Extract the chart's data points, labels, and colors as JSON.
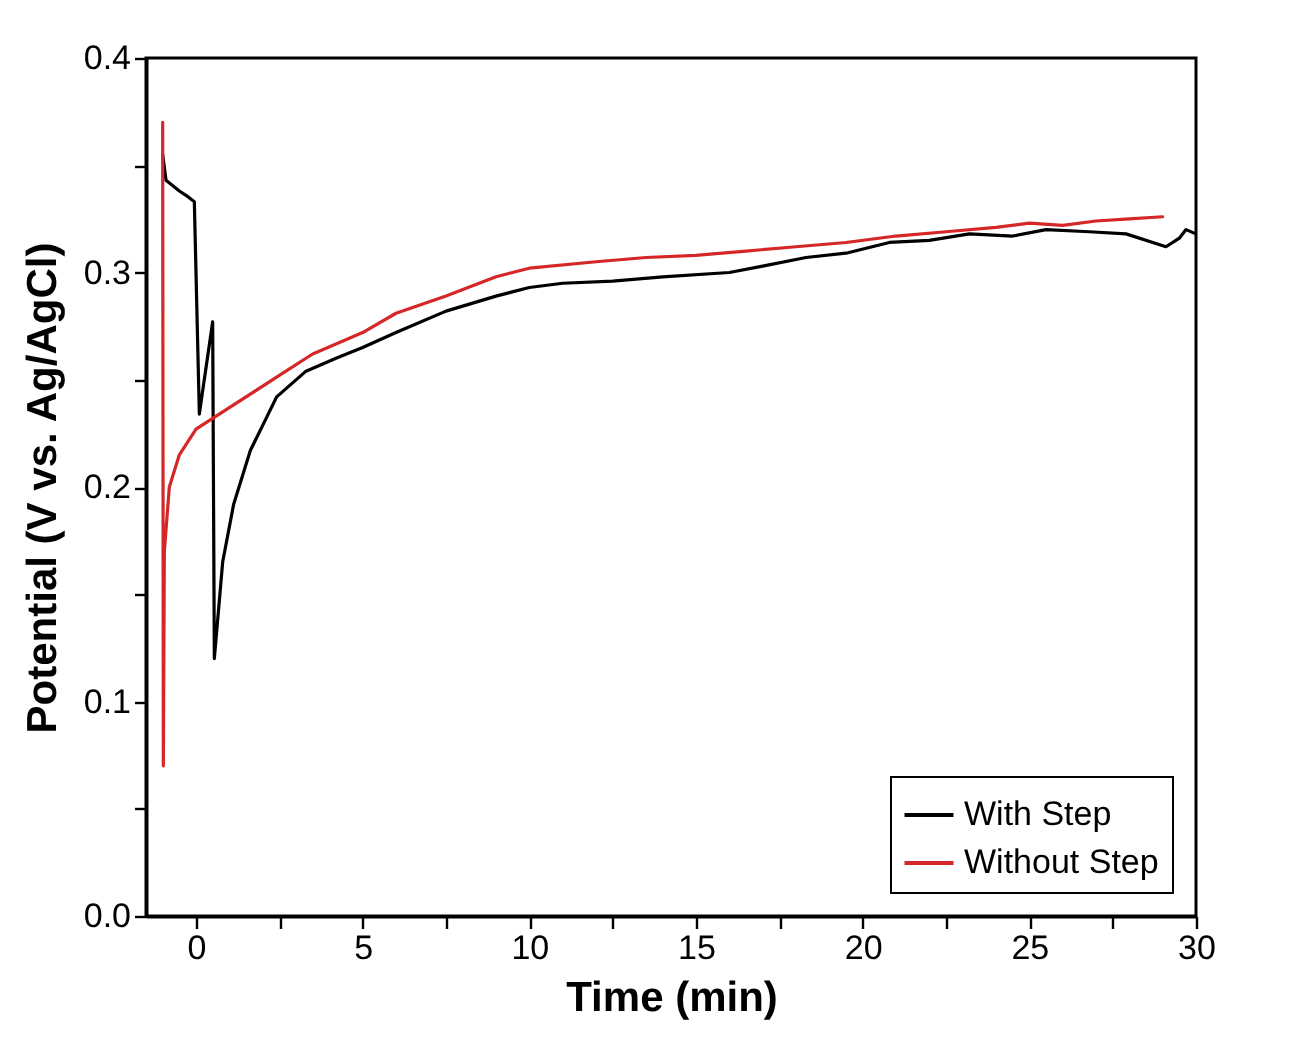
{
  "chart_data": {
    "type": "line",
    "xlabel": "Time (min)",
    "ylabel": "Potential (V vs. Ag/AgCl)",
    "xlim": [
      -1.5,
      30
    ],
    "ylim": [
      0,
      0.4
    ],
    "xticks": [
      0,
      {
        "value": 2.5,
        "label": null
      },
      5,
      {
        "value": 7.5,
        "label": null
      },
      10,
      {
        "value": 12.5,
        "label": null
      },
      15,
      {
        "value": 17.5,
        "label": null
      },
      20,
      {
        "value": 22.5,
        "label": null
      },
      25,
      {
        "value": 27.5,
        "label": null
      },
      30
    ],
    "yticks": [
      {
        "value": 0,
        "label": "0.0"
      },
      {
        "value": 0.05,
        "label": null
      },
      0.1,
      {
        "value": 0.15,
        "label": null
      },
      0.2,
      {
        "value": 0.25,
        "label": null
      },
      0.3,
      {
        "value": 0.35,
        "label": null
      },
      0.4
    ],
    "legend": "bottom right",
    "grid": false,
    "series": [
      {
        "name": "With Step",
        "color": "#000000",
        "x": [
          -1.0,
          -0.9,
          -0.5,
          -0.3,
          -0.05,
          0.1,
          0.5,
          0.55,
          0.8,
          1.13,
          1.63,
          2.42,
          3.3,
          4.2,
          5,
          6,
          7.5,
          9,
          10,
          11,
          12.5,
          14,
          16,
          17,
          18.3,
          19.5,
          20.8,
          22,
          23.2,
          24.5,
          25.5,
          26.8,
          27.9,
          29.1,
          29.5,
          29.7,
          30
        ],
        "values": [
          0.355,
          0.343,
          0.338,
          0.336,
          0.333,
          0.234,
          0.277,
          0.12,
          0.165,
          0.192,
          0.217,
          0.242,
          0.254,
          0.26,
          0.265,
          0.272,
          0.282,
          0.289,
          0.293,
          0.295,
          0.296,
          0.298,
          0.3,
          0.303,
          0.307,
          0.309,
          0.314,
          0.315,
          0.318,
          0.317,
          0.32,
          0.319,
          0.318,
          0.312,
          0.316,
          0.32,
          0.318
        ]
      },
      {
        "name": "Without Step",
        "color": "#d62728",
        "x": [
          -1.0,
          -0.98,
          -0.95,
          -0.8,
          -0.5,
          0,
          1,
          2.5,
          3.5,
          5,
          6,
          7.5,
          9,
          10,
          12,
          13.5,
          15,
          16.5,
          18,
          19.5,
          21,
          22.5,
          24,
          25,
          26,
          27,
          28,
          29
        ],
        "values": [
          0.37,
          0.07,
          0.17,
          0.2,
          0.215,
          0.227,
          0.237,
          0.252,
          0.262,
          0.272,
          0.281,
          0.289,
          0.298,
          0.302,
          0.305,
          0.307,
          0.308,
          0.31,
          0.312,
          0.314,
          0.317,
          0.319,
          0.321,
          0.323,
          0.322,
          0.324,
          0.325,
          0.326
        ]
      }
    ]
  }
}
